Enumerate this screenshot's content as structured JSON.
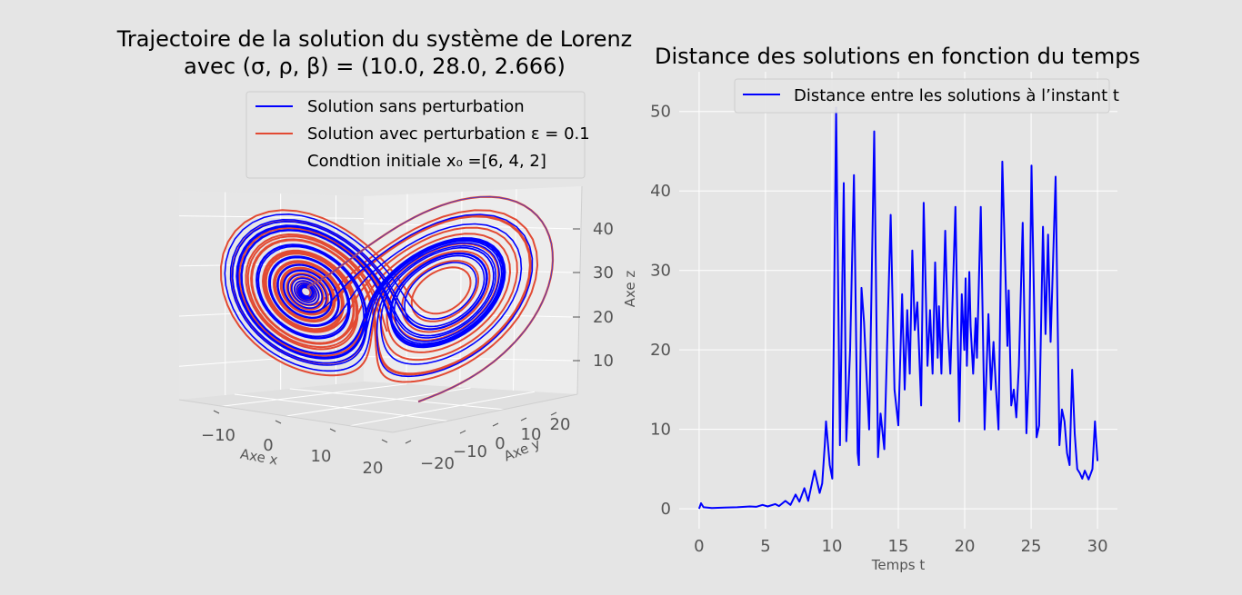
{
  "colors": {
    "figure_bg": "#e5e5e5",
    "plot_bg": "#e5e5e5",
    "grid": "#ffffff",
    "pane_left": "#e6e6e6",
    "pane_right": "#ececec",
    "pane_floor": "#e0e0e0",
    "unperturbed": "#0000ff",
    "perturbed": "#e24a33"
  },
  "chart_data": [
    {
      "type": "line3d",
      "title_line1": "Trajectoire de la solution du système de Lorenz",
      "title_line2": "avec (σ, ρ, β) = (10.0, 28.0, 2.666)",
      "params": {
        "sigma": 10.0,
        "rho": 28.0,
        "beta": 2.666,
        "epsilon": 0.1,
        "x0": [
          6,
          4,
          2
        ]
      },
      "legend": [
        {
          "label": "Solution sans perturbation",
          "color": "#0000ff"
        },
        {
          "label": "Solution avec perturbation ε = 0.1",
          "color": "#e24a33"
        },
        {
          "label": "Condtion initiale x₀ =[6, 4, 2]",
          "color": "none"
        }
      ],
      "xlabel": "Axe x",
      "ylabel": "Axe y",
      "zlabel": "Axe z",
      "xticks": [
        "−10",
        "0",
        "10",
        "20"
      ],
      "yticks": [
        "−20",
        "−10",
        "0",
        "10",
        "20"
      ],
      "zticks": [
        "10",
        "20",
        "30",
        "40"
      ],
      "xlim": [
        -20,
        22
      ],
      "ylim": [
        -28,
        30
      ],
      "zlim": [
        0,
        50
      ],
      "grid": true
    },
    {
      "type": "line",
      "title": "Distance des solutions en fonction du temps",
      "xlabel": "Temps t",
      "ylabel": "",
      "xlim": [
        -1.5,
        31.5
      ],
      "ylim": [
        -2.5,
        55
      ],
      "xticks": [
        "0",
        "5",
        "10",
        "15",
        "20",
        "25",
        "30"
      ],
      "yticks": [
        "0",
        "10",
        "20",
        "30",
        "40",
        "50"
      ],
      "legend": "top-right",
      "grid": true,
      "series": [
        {
          "name": "Distance entre les solutions à l’instant t",
          "color": "#0000ff",
          "points": [
            [
              0,
              0
            ],
            [
              0.15,
              0.7
            ],
            [
              0.35,
              0.2
            ],
            [
              1,
              0.1
            ],
            [
              2,
              0.15
            ],
            [
              3,
              0.2
            ],
            [
              4,
              0.3
            ],
            [
              4.5,
              0.25
            ],
            [
              5,
              0.5
            ],
            [
              5.4,
              0.3
            ],
            [
              6,
              0.6
            ],
            [
              6.3,
              0.35
            ],
            [
              6.8,
              1.0
            ],
            [
              7.2,
              0.5
            ],
            [
              7.6,
              1.8
            ],
            [
              7.9,
              0.9
            ],
            [
              8.3,
              2.6
            ],
            [
              8.6,
              1.0
            ],
            [
              9.1,
              4.8
            ],
            [
              9.5,
              2.0
            ],
            [
              9.7,
              3.2
            ],
            [
              9.9,
              8.0
            ],
            [
              10.0,
              11.0
            ],
            [
              10.3,
              5.5
            ],
            [
              10.5,
              3.8
            ],
            [
              10.8,
              50.5
            ],
            [
              11.1,
              8.0
            ],
            [
              11.4,
              41.0
            ],
            [
              11.6,
              8.5
            ],
            [
              11.9,
              20.0
            ],
            [
              12.2,
              42.0
            ],
            [
              12.5,
              7.0
            ],
            [
              12.6,
              5.5
            ],
            [
              12.8,
              27.8
            ],
            [
              13.0,
              23.5
            ],
            [
              13.4,
              10.0
            ],
            [
              13.8,
              47.5
            ],
            [
              14.1,
              6.5
            ],
            [
              14.3,
              12.0
            ],
            [
              14.6,
              7.5
            ],
            [
              15.1,
              37.0
            ],
            [
              15.4,
              15.0
            ],
            [
              15.7,
              10.5
            ],
            [
              16.0,
              27.0
            ],
            [
              16.2,
              15.0
            ],
            [
              16.4,
              25.0
            ],
            [
              16.6,
              17.0
            ],
            [
              16.8,
              32.5
            ],
            [
              17.0,
              22.5
            ],
            [
              17.2,
              26.0
            ],
            [
              17.5,
              13.0
            ],
            [
              17.7,
              38.5
            ],
            [
              18.0,
              18.0
            ],
            [
              18.2,
              25.0
            ],
            [
              18.4,
              17.0
            ],
            [
              18.6,
              31.0
            ],
            [
              18.8,
              19.0
            ],
            [
              18.9,
              25.5
            ],
            [
              19.1,
              17.0
            ],
            [
              19.4,
              35.0
            ],
            [
              19.6,
              23.0
            ],
            [
              19.8,
              17.0
            ],
            [
              20.2,
              38.0
            ],
            [
              20.5,
              11.0
            ],
            [
              20.7,
              27.0
            ],
            [
              20.9,
              20.0
            ],
            [
              21.0,
              29.0
            ],
            [
              21.1,
              18.0
            ],
            [
              21.3,
              29.8
            ],
            [
              21.4,
              23.0
            ],
            [
              21.6,
              17.0
            ],
            [
              21.8,
              24.0
            ],
            [
              21.9,
              19.0
            ],
            [
              22.2,
              38.0
            ],
            [
              22.5,
              10.0
            ],
            [
              22.6,
              15.0
            ],
            [
              22.8,
              24.5
            ],
            [
              23.0,
              15.0
            ],
            [
              23.2,
              21.0
            ],
            [
              23.4,
              15.0
            ],
            [
              23.6,
              10.0
            ],
            [
              23.9,
              43.7
            ],
            [
              24.3,
              20.5
            ],
            [
              24.4,
              27.5
            ],
            [
              24.6,
              13.0
            ],
            [
              24.8,
              15.0
            ],
            [
              25.0,
              11.5
            ],
            [
              25.2,
              18.0
            ],
            [
              25.5,
              36.0
            ],
            [
              25.8,
              9.5
            ],
            [
              26.0,
              17.5
            ],
            [
              26.2,
              43.2
            ],
            [
              26.6,
              9.0
            ],
            [
              26.8,
              10.5
            ],
            [
              27.1,
              35.5
            ],
            [
              27.3,
              22.0
            ],
            [
              27.5,
              34.5
            ],
            [
              27.7,
              21.0
            ],
            [
              28.1,
              41.8
            ],
            [
              28.4,
              8.0
            ],
            [
              28.6,
              12.5
            ],
            [
              28.8,
              11.0
            ],
            [
              29.0,
              7.0
            ],
            [
              29.2,
              5.5
            ],
            [
              29.4,
              17.5
            ],
            [
              29.6,
              9.5
            ],
            [
              29.8,
              5.0
            ],
            [
              30.0,
              4.5
            ],
            [
              30.2,
              3.8
            ],
            [
              30.4,
              4.8
            ],
            [
              30.7,
              3.7
            ],
            [
              31.0,
              5.0
            ],
            [
              31.2,
              11.0
            ],
            [
              31.4,
              6.0
            ]
          ]
        }
      ]
    }
  ]
}
